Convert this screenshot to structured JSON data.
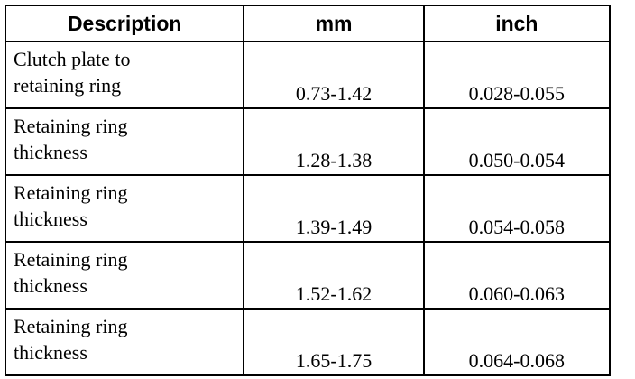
{
  "table": {
    "header": [
      "Description",
      "mm",
      "inch"
    ],
    "rows": [
      [
        [
          "Clutch plate to",
          "retaining ring"
        ],
        "0.73-1.42",
        "0.028-0.055"
      ],
      [
        [
          "Retaining ring",
          "thickness"
        ],
        "1.28-1.38",
        "0.050-0.054"
      ],
      [
        [
          "Retaining ring",
          "thickness"
        ],
        "1.39-1.49",
        "0.054-0.058"
      ],
      [
        [
          "Retaining ring",
          "thickness"
        ],
        "1.52-1.62",
        "0.060-0.063"
      ],
      [
        [
          "Retaining ring",
          "thickness"
        ],
        "1.65-1.75",
        "0.064-0.068"
      ]
    ]
  }
}
